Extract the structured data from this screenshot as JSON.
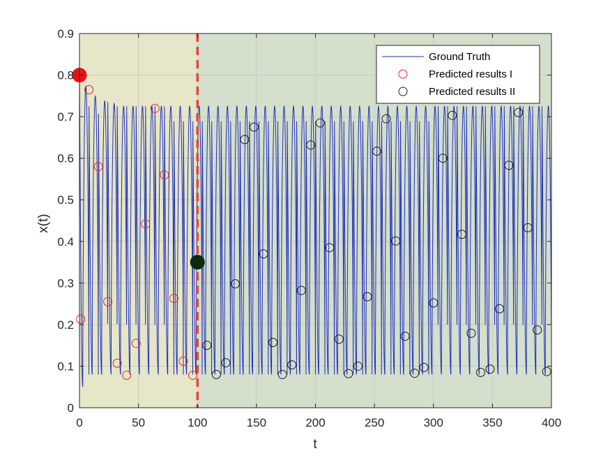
{
  "chart_data": {
    "type": "line",
    "title": "",
    "xlabel": "t",
    "ylabel": "x(t)",
    "xlim": [
      0,
      400
    ],
    "ylim": [
      0,
      0.9
    ],
    "xticks": [
      0,
      50,
      100,
      150,
      200,
      250,
      300,
      350,
      400
    ],
    "yticks": [
      0,
      0.1,
      0.2,
      0.3,
      0.4,
      0.5,
      0.6,
      0.7,
      0.8,
      0.9
    ],
    "grid": true,
    "legend_position": "top-right",
    "regions": [
      {
        "x_range": [
          0,
          100
        ],
        "color": "#e6e6c8"
      },
      {
        "x_range": [
          100,
          400
        ],
        "color": "#d4dfcc"
      }
    ],
    "split_line": {
      "x": 100,
      "color": "#e8453c",
      "style": "dashed"
    },
    "series": [
      {
        "name": "Ground Truth",
        "kind": "line",
        "color": "#1f2fb8",
        "model": {
          "x0": 0.8,
          "period": 8.0,
          "steady_max": 0.725,
          "steady_min": 0.08,
          "first_min": 0.035
        }
      },
      {
        "name": "Predicted results I",
        "kind": "marker",
        "color": "#e8262a",
        "x": [
          1,
          8,
          16,
          24,
          32,
          40,
          48,
          56,
          64,
          72,
          80,
          88,
          96
        ],
        "y": [
          0.213,
          0.765,
          0.58,
          0.255,
          0.107,
          0.078,
          0.155,
          0.442,
          0.72,
          0.56,
          0.263,
          0.112,
          0.078
        ]
      },
      {
        "name": "Predicted results II",
        "kind": "marker",
        "color": "#1a1a1a",
        "x": [
          108,
          116,
          124,
          132,
          140,
          148,
          156,
          164,
          172,
          180,
          188,
          196,
          204,
          212,
          220,
          228,
          236,
          244,
          252,
          260,
          268,
          276,
          284,
          292,
          300,
          308,
          316,
          324,
          332,
          340,
          348,
          356,
          364,
          372,
          380,
          388,
          396
        ],
        "y": [
          0.15,
          0.08,
          0.108,
          0.298,
          0.645,
          0.675,
          0.37,
          0.157,
          0.08,
          0.103,
          0.282,
          0.632,
          0.685,
          0.385,
          0.165,
          0.082,
          0.1,
          0.267,
          0.617,
          0.695,
          0.401,
          0.172,
          0.083,
          0.097,
          0.252,
          0.6,
          0.703,
          0.417,
          0.179,
          0.085,
          0.093,
          0.238,
          0.583,
          0.71,
          0.433,
          0.187,
          0.087
        ]
      }
    ],
    "highlight_points": [
      {
        "x": 0,
        "y": 0.8,
        "color": "#ee1111"
      },
      {
        "x": 100,
        "y": 0.35,
        "color": "#0d2a0d"
      }
    ]
  }
}
